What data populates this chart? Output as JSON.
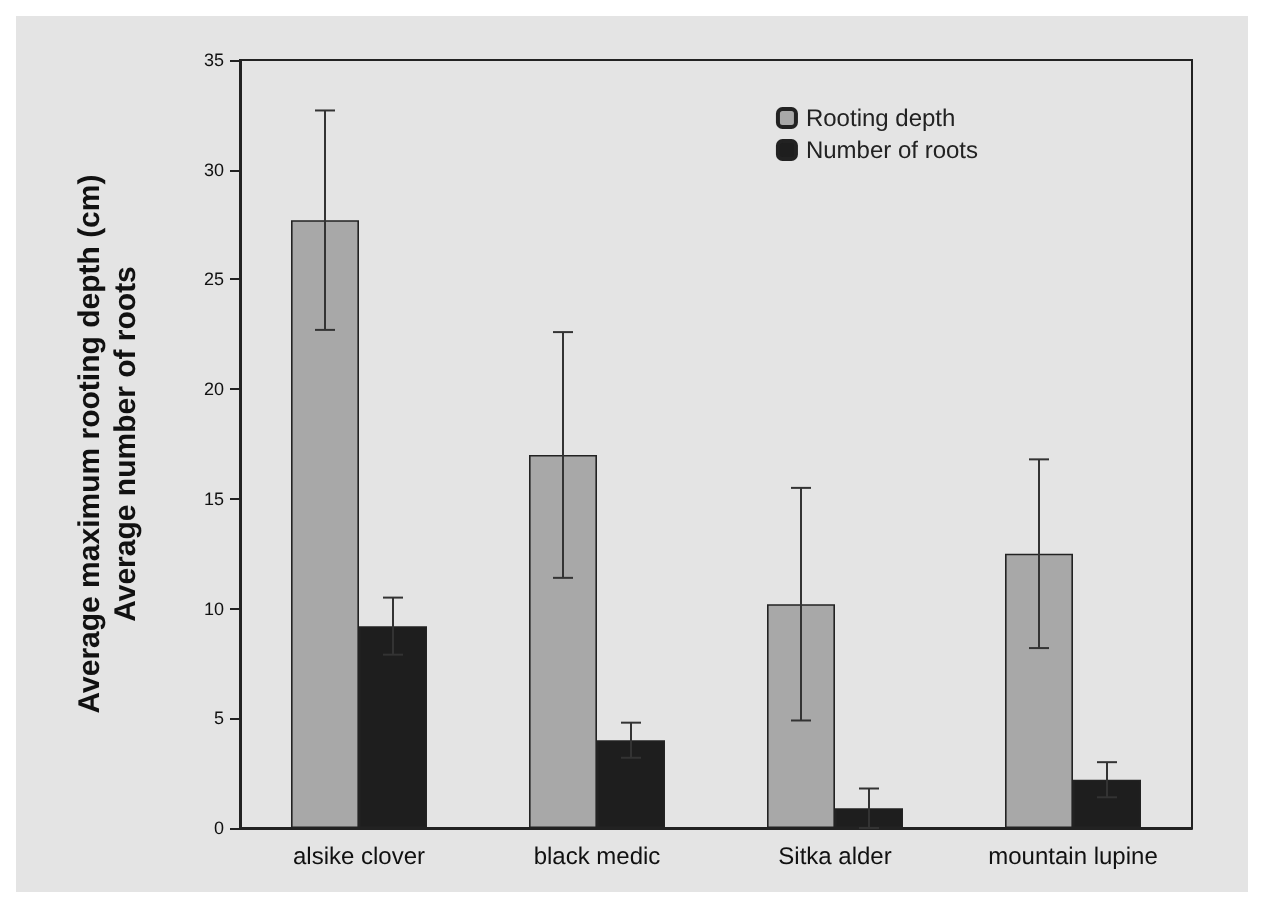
{
  "chart_data": {
    "type": "bar",
    "ylabel": "Average maximum rooting depth (cm)\nAverage number of roots",
    "categories": [
      "alsike clover",
      "black medic",
      "Sitka alder",
      "mountain lupine"
    ],
    "series": [
      {
        "name": "Rooting depth",
        "color": "#a8a8a8",
        "values": [
          27.7,
          17.0,
          10.2,
          12.5
        ],
        "errors": [
          5.0,
          5.6,
          5.3,
          4.3
        ]
      },
      {
        "name": "Number of roots",
        "color": "#1e1e1e",
        "values": [
          9.2,
          4.0,
          0.9,
          2.2
        ],
        "errors": [
          1.3,
          0.8,
          0.9,
          0.8
        ]
      }
    ],
    "ylim": [
      0,
      35
    ],
    "yticks": [
      0,
      5,
      10,
      15,
      20,
      25,
      30,
      35
    ],
    "grid": false,
    "legend": "top right"
  }
}
